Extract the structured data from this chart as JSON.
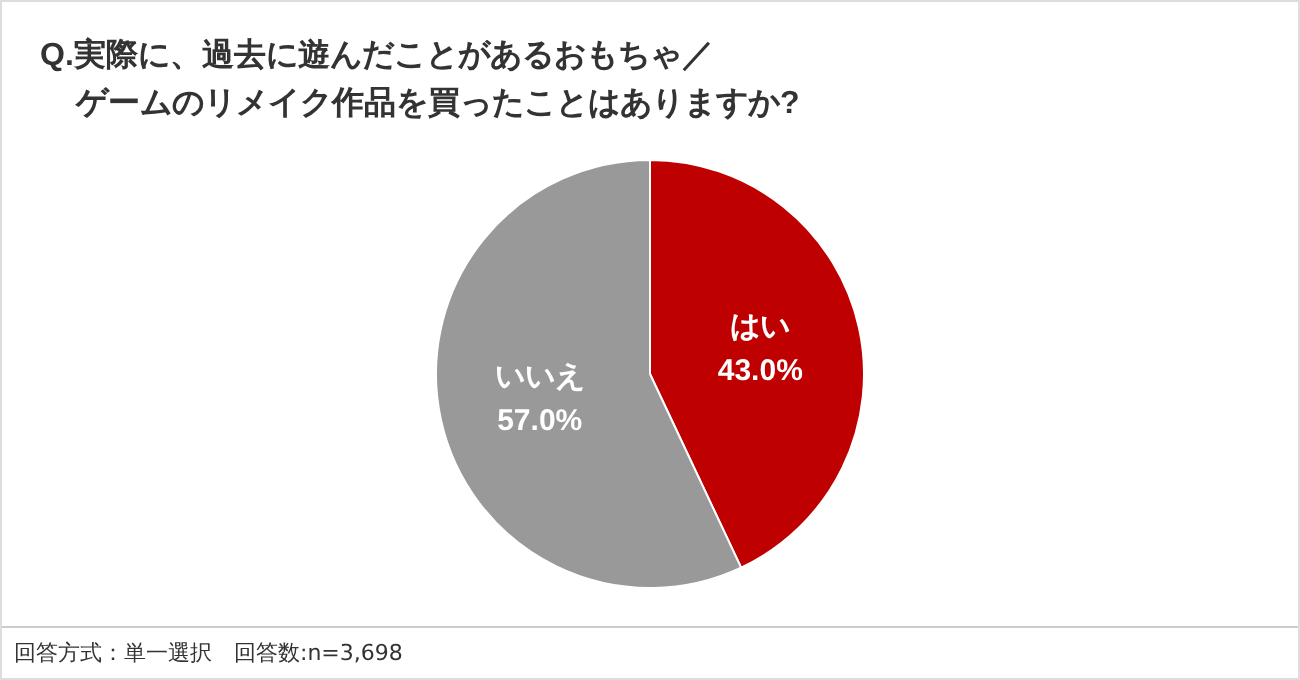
{
  "chart_data": {
    "type": "pie",
    "title": "Q.実際に、過去に遊んだことがあるおもちゃ／ゲームのリメイク作品を買ったことはありますか?",
    "categories": [
      "はい",
      "いいえ"
    ],
    "values": [
      43.0,
      57.0
    ],
    "colors": [
      "#bf0000",
      "#999999"
    ],
    "value_labels": [
      "43.0%",
      "57.0%"
    ],
    "legend": false,
    "annotations": [
      "回答方式：単一選択　回答数:n=3,698"
    ]
  }
}
